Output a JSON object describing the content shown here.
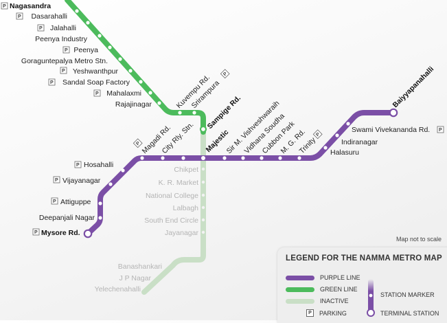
{
  "colors": {
    "purple": "#7b4fa6",
    "green": "#4cbb5c",
    "inactive": "#c9dfc6"
  },
  "note": "Map not to scale",
  "legend": {
    "title": "LEGEND FOR THE NAMMA METRO MAP",
    "purple_line": "PURPLE LINE",
    "green_line": "GREEN LINE",
    "inactive": "INACTIVE",
    "parking": "PARKING",
    "station_marker": "STATION MARKER",
    "terminal_station": "TERMINAL STATION",
    "parking_symbol": "P"
  },
  "stations": {
    "nagasandra": "Nagasandra",
    "dasarahalli": "Dasarahalli",
    "jalahalli": "Jalahalli",
    "peenya_industry": "Peenya Industry",
    "peenya": "Peenya",
    "goraguntepalya": "Goraguntepalya Metro Stn.",
    "yeshwanthpur": "Yeshwanthpur",
    "sandal_soap": "Sandal Soap Factory",
    "mahalaxmi": "Mahalaxmi",
    "rajajinagar": "Rajajinagar",
    "kuvempu": "Kuvempu Rd.",
    "srirampura": "Srirampura",
    "sampige": "Sampige Rd.",
    "majestic": "Majestic",
    "magadi": "Magadi Rd.",
    "city_rly": "City Rly. Stn.",
    "hosahalli": "Hosahalli",
    "vijayanagar": "Vijayanagar",
    "attiguppe": "Attiguppe",
    "deepanjali": "Deepanjali Nagar",
    "mysore": "Mysore Rd.",
    "vishveshwaraih": "Sir M. Vishveshwaraih",
    "vidhana": "Vidhana Soudha",
    "cubbon": "Cubbon Park",
    "mg_rd": "M. G. Rd.",
    "trinity": "Trinity",
    "halasuru": "Halasuru",
    "indiranagar": "Indiranagar",
    "swami": "Swami Vivekananda Rd.",
    "baiyyapanahalli": "Baiyyapanahalli",
    "chikpet": "Chikpet",
    "kr_market": "K. R. Market",
    "national_college": "National College",
    "lalbagh": "Lalbagh",
    "south_end": "South End Circle",
    "jayanagar": "Jayanagar",
    "banashankari": "Banashankari",
    "jp_nagar": "J P Nagar",
    "yelechenahalli": "Yelechenahalli"
  }
}
